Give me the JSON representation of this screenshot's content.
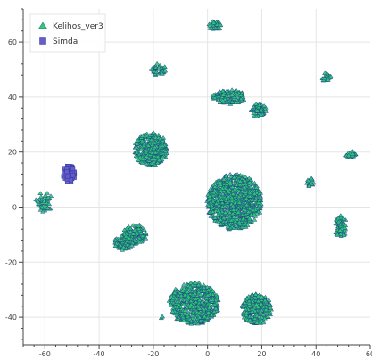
{
  "chart_data": {
    "type": "scatter",
    "title": "",
    "xlabel": "",
    "ylabel": "",
    "xlim": [
      -68,
      60
    ],
    "ylim": [
      -50,
      72
    ],
    "x_ticks": [
      -60,
      -40,
      -20,
      0,
      20,
      40,
      60
    ],
    "y_ticks": [
      -40,
      -20,
      0,
      20,
      40,
      60
    ],
    "grid": true,
    "legend_position": "top-left",
    "series": [
      {
        "name": "Kelihos_ver3",
        "marker": "triangle",
        "color": "#2ecc71",
        "stroke": "#1f4a8a",
        "clusters": [
          {
            "cx": 3,
            "cy": 66,
            "rx": 2.5,
            "ry": 1.5,
            "n": 35
          },
          {
            "cx": -18,
            "cy": 50,
            "rx": 2.5,
            "ry": 2,
            "n": 40
          },
          {
            "cx": -21,
            "cy": 21,
            "rx": 6,
            "ry": 6,
            "n": 320
          },
          {
            "cx": 8,
            "cy": 40,
            "rx": 6,
            "ry": 2.5,
            "n": 120
          },
          {
            "cx": 19,
            "cy": 35,
            "rx": 3,
            "ry": 2.5,
            "n": 55
          },
          {
            "cx": 44,
            "cy": 47,
            "rx": 1.5,
            "ry": 2,
            "n": 22
          },
          {
            "cx": 53,
            "cy": 19,
            "rx": 2,
            "ry": 1.2,
            "n": 25
          },
          {
            "cx": 38,
            "cy": 9,
            "rx": 1.2,
            "ry": 1.5,
            "n": 18
          },
          {
            "cx": 10,
            "cy": 2,
            "rx": 10,
            "ry": 10,
            "n": 900
          },
          {
            "cx": 49,
            "cy": -7,
            "rx": 2,
            "ry": 4,
            "n": 60
          },
          {
            "cx": -60,
            "cy": 2,
            "rx": 3.5,
            "ry": 3.5,
            "n": 45
          },
          {
            "cx": -27,
            "cy": -10,
            "rx": 4.5,
            "ry": 3.5,
            "n": 120
          },
          {
            "cx": -31,
            "cy": -13,
            "rx": 3.5,
            "ry": 2.5,
            "n": 80
          },
          {
            "cx": -5,
            "cy": -35,
            "rx": 9,
            "ry": 7.5,
            "n": 560
          },
          {
            "cx": 18,
            "cy": -37,
            "rx": 5.5,
            "ry": 5.5,
            "n": 260
          },
          {
            "cx": -17,
            "cy": -40,
            "rx": 0.5,
            "ry": 0.5,
            "n": 3
          }
        ]
      },
      {
        "name": "Simda",
        "marker": "square",
        "color": "#6a5acd",
        "stroke": "#2b3f9e",
        "clusters": [
          {
            "cx": -51,
            "cy": 12,
            "rx": 2,
            "ry": 3,
            "n": 60
          }
        ]
      }
    ]
  }
}
